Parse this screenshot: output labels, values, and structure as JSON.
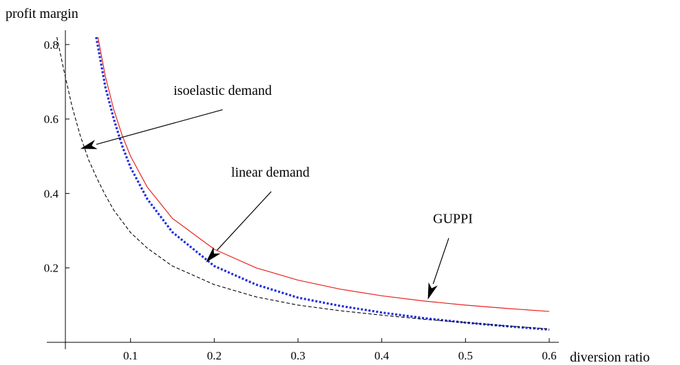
{
  "chart_data": {
    "type": "line",
    "xlabel": "diversion ratio",
    "ylabel": "profit margin",
    "xlim": [
      0,
      0.6
    ],
    "ylim": [
      0,
      0.82
    ],
    "xticks": [
      0.1,
      0.2,
      0.3,
      0.4,
      0.5,
      0.6
    ],
    "yticks": [
      0.2,
      0.4,
      0.6,
      0.8
    ],
    "xtick_labels": [
      "0.1",
      "0.2",
      "0.3",
      "0.4",
      "0.5",
      "0.6"
    ],
    "ytick_labels": [
      "0.2",
      "0.4",
      "0.6",
      "0.8"
    ],
    "grid": false,
    "series": [
      {
        "name": "GUPPI",
        "style": "solid",
        "color": "#e8221c",
        "x": [
          0.061,
          0.07,
          0.08,
          0.09,
          0.1,
          0.12,
          0.15,
          0.2,
          0.25,
          0.3,
          0.35,
          0.4,
          0.45,
          0.5,
          0.55,
          0.6
        ],
        "y": [
          0.82,
          0.714,
          0.625,
          0.556,
          0.5,
          0.417,
          0.333,
          0.25,
          0.2,
          0.167,
          0.143,
          0.125,
          0.111,
          0.1,
          0.091,
          0.083
        ]
      },
      {
        "name": "linear demand",
        "style": "dotted",
        "color": "#1f2ee0",
        "x": [
          0.059,
          0.07,
          0.08,
          0.09,
          0.1,
          0.12,
          0.15,
          0.2,
          0.25,
          0.3,
          0.35,
          0.4,
          0.45,
          0.5,
          0.55,
          0.6
        ],
        "y": [
          0.82,
          0.685,
          0.6,
          0.528,
          0.47,
          0.385,
          0.296,
          0.205,
          0.155,
          0.12,
          0.098,
          0.08,
          0.065,
          0.053,
          0.043,
          0.034
        ]
      },
      {
        "name": "isoelastic demand",
        "style": "dashed",
        "color": "#000000",
        "x": [
          0.012,
          0.02,
          0.03,
          0.04,
          0.05,
          0.06,
          0.07,
          0.08,
          0.1,
          0.12,
          0.15,
          0.2,
          0.25,
          0.3,
          0.35,
          0.4,
          0.45,
          0.5,
          0.55,
          0.6
        ],
        "y": [
          0.82,
          0.735,
          0.635,
          0.555,
          0.49,
          0.44,
          0.395,
          0.355,
          0.295,
          0.253,
          0.205,
          0.155,
          0.122,
          0.1,
          0.085,
          0.073,
          0.062,
          0.053,
          0.044,
          0.036
        ]
      }
    ],
    "annotations": [
      {
        "text": "isoelastic demand",
        "text_at": [
          0.21,
          0.665
        ],
        "arrow_from": [
          0.21,
          0.625
        ],
        "arrow_to": [
          0.04,
          0.52
        ]
      },
      {
        "text": "linear demand",
        "text_at": [
          0.267,
          0.445
        ],
        "arrow_from": [
          0.268,
          0.405
        ],
        "arrow_to": [
          0.19,
          0.215
        ]
      },
      {
        "text": "GUPPI",
        "text_at": [
          0.485,
          0.32
        ],
        "arrow_from": [
          0.48,
          0.28
        ],
        "arrow_to": [
          0.455,
          0.115
        ]
      }
    ]
  }
}
